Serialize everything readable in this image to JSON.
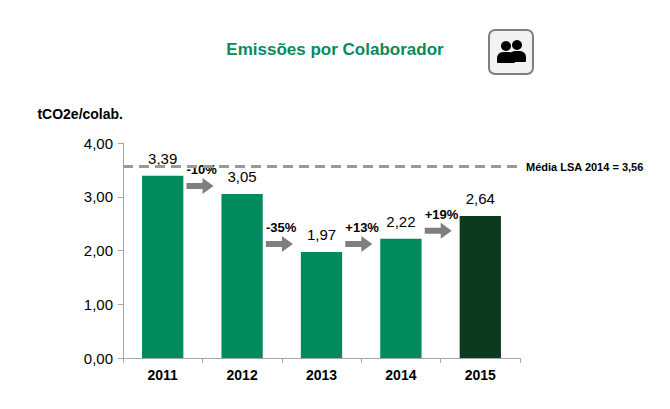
{
  "chart_data": {
    "type": "bar",
    "title": "Emissões por Colaborador",
    "y_label": "tCO2e/colab.",
    "categories": [
      "2011",
      "2012",
      "2013",
      "2014",
      "2015"
    ],
    "values": [
      3.39,
      3.05,
      1.97,
      2.22,
      2.64
    ],
    "value_labels": [
      "3,39",
      "3,05",
      "1,97",
      "2,22",
      "2,64"
    ],
    "colors": [
      "#008a5e",
      "#008a5e",
      "#008a5e",
      "#008a5e",
      "#0b3b1c"
    ],
    "data_labels": true,
    "grid": false,
    "ylim": [
      0,
      4
    ],
    "yticks": [
      {
        "value": 0,
        "label": "0,00"
      },
      {
        "value": 1,
        "label": "1,00"
      },
      {
        "value": 2,
        "label": "2,00"
      },
      {
        "value": 3,
        "label": "3,00"
      },
      {
        "value": 4,
        "label": "4,00"
      }
    ],
    "reference_line": {
      "value": 3.56,
      "label": "Média LSA 2014 = 3,56"
    },
    "change_annotations": [
      "-10%",
      "-35%",
      "+13%",
      "+19%"
    ]
  }
}
